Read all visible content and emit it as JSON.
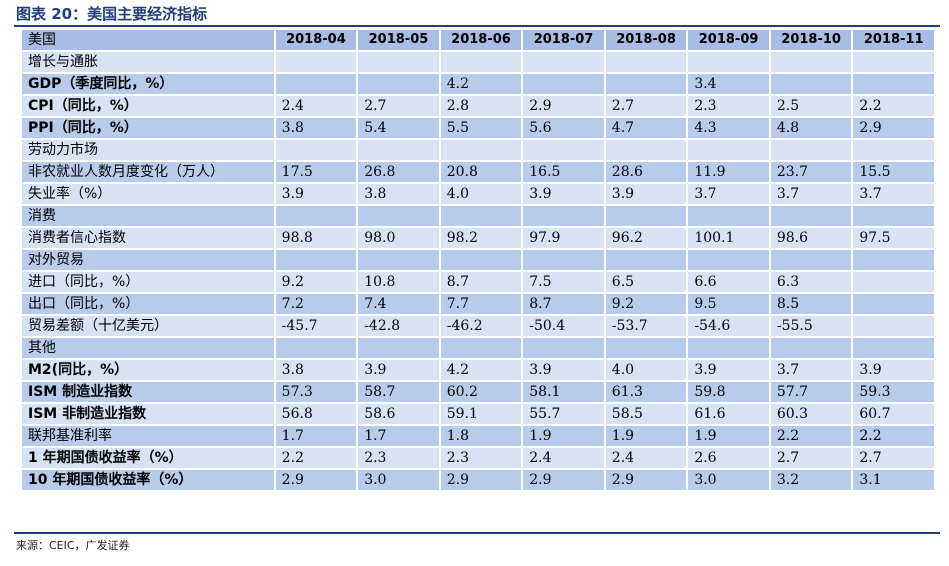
{
  "caption": "图表 20：美国主要经济指标",
  "header": {
    "label": "美国",
    "columns": [
      "2018-04",
      "2018-05",
      "2018-06",
      "2018-07",
      "2018-08",
      "2018-09",
      "2018-10",
      "2018-11"
    ]
  },
  "rows": [
    {
      "label": "增长与通胀",
      "bold": false,
      "values": [
        "",
        "",
        "",
        "",
        "",
        "",
        "",
        ""
      ]
    },
    {
      "label": "GDP（季度同比，%）",
      "bold": true,
      "values": [
        "",
        "",
        "4.2",
        "",
        "",
        "3.4",
        "",
        ""
      ]
    },
    {
      "label": "CPI（同比，%）",
      "bold": true,
      "values": [
        "2.4",
        "2.7",
        "2.8",
        "2.9",
        "2.7",
        "2.3",
        "2.5",
        "2.2"
      ]
    },
    {
      "label": "PPI（同比，%）",
      "bold": true,
      "values": [
        "3.8",
        "5.4",
        "5.5",
        "5.6",
        "4.7",
        "4.3",
        "4.8",
        "2.9"
      ]
    },
    {
      "label": "劳动力市场",
      "bold": false,
      "values": [
        "",
        "",
        "",
        "",
        "",
        "",
        "",
        ""
      ]
    },
    {
      "label": "非农就业人数月度变化（万人）",
      "bold": false,
      "values": [
        "17.5",
        "26.8",
        "20.8",
        "16.5",
        "28.6",
        "11.9",
        "23.7",
        "15.5"
      ]
    },
    {
      "label": "失业率（%）",
      "bold": false,
      "values": [
        "3.9",
        "3.8",
        "4.0",
        "3.9",
        "3.9",
        "3.7",
        "3.7",
        "3.7"
      ]
    },
    {
      "label": "消费",
      "bold": false,
      "values": [
        "",
        "",
        "",
        "",
        "",
        "",
        "",
        ""
      ]
    },
    {
      "label": "消费者信心指数",
      "bold": false,
      "values": [
        "98.8",
        "98.0",
        "98.2",
        "97.9",
        "96.2",
        "100.1",
        "98.6",
        "97.5"
      ]
    },
    {
      "label": "对外贸易",
      "bold": false,
      "values": [
        "",
        "",
        "",
        "",
        "",
        "",
        "",
        ""
      ]
    },
    {
      "label": "进口（同比，%）",
      "bold": false,
      "values": [
        "9.2",
        "10.8",
        "8.7",
        "7.5",
        "6.5",
        "6.6",
        "6.3",
        ""
      ]
    },
    {
      "label": "出口（同比，%）",
      "bold": false,
      "values": [
        "7.2",
        "7.4",
        "7.7",
        "8.7",
        "9.2",
        "9.5",
        "8.5",
        ""
      ]
    },
    {
      "label": "贸易差额（十亿美元）",
      "bold": false,
      "values": [
        "-45.7",
        "-42.8",
        "-46.2",
        "-50.4",
        "-53.7",
        "-54.6",
        "-55.5",
        ""
      ]
    },
    {
      "label": "其他",
      "bold": false,
      "values": [
        "",
        "",
        "",
        "",
        "",
        "",
        "",
        ""
      ]
    },
    {
      "label": "M2(同比，%）",
      "bold": true,
      "values": [
        "3.8",
        "3.9",
        "4.2",
        "3.9",
        "4.0",
        "3.9",
        "3.7",
        "3.9"
      ]
    },
    {
      "label": "ISM 制造业指数",
      "bold": true,
      "values": [
        "57.3",
        "58.7",
        "60.2",
        "58.1",
        "61.3",
        "59.8",
        "57.7",
        "59.3"
      ]
    },
    {
      "label": "ISM 非制造业指数",
      "bold": true,
      "values": [
        "56.8",
        "58.6",
        "59.1",
        "55.7",
        "58.5",
        "61.6",
        "60.3",
        "60.7"
      ]
    },
    {
      "label": "联邦基准利率",
      "bold": false,
      "values": [
        "1.7",
        "1.7",
        "1.8",
        "1.9",
        "1.9",
        "1.9",
        "2.2",
        "2.2"
      ]
    },
    {
      "label": "1 年期国债收益率（%）",
      "bold": true,
      "values": [
        "2.2",
        "2.3",
        "2.3",
        "2.4",
        "2.4",
        "2.6",
        "2.7",
        "2.7"
      ]
    },
    {
      "label": "10 年期国债收益率（%）",
      "bold": true,
      "values": [
        "2.9",
        "3.0",
        "2.9",
        "2.9",
        "2.9",
        "3.0",
        "3.2",
        "3.1"
      ]
    }
  ],
  "source": "来源：CEIC，广发证券",
  "colors": {
    "title": "#1f3f7a",
    "rule": "#1f3f7a",
    "header_bg": "#a7bde6",
    "row_light": "#d7e2f4",
    "row_dark": "#b7cbea"
  }
}
